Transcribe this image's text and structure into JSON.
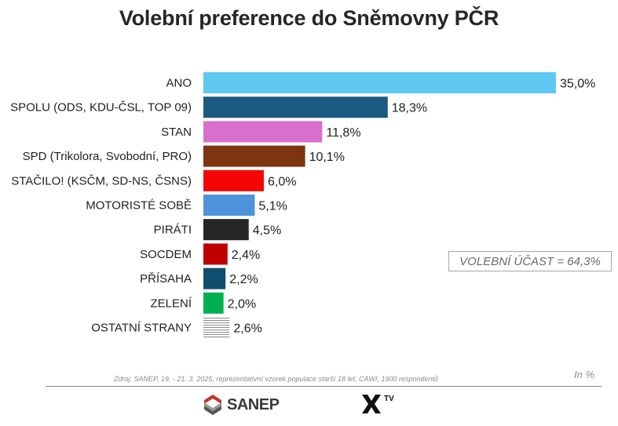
{
  "chart_data": {
    "type": "bar",
    "orientation": "horizontal",
    "title": "Volební preference do Sněmovny PČR",
    "categories": [
      "ANO",
      "SPOLU (ODS, KDU-ČSL, TOP 09)",
      "STAN",
      "SPD (Trikolora, Svobodní, PRO)",
      "STAČILO! (KSČM, SD-NS, ČSNS)",
      "MOTORISTÉ SOBĚ",
      "PIRÁTI",
      "SOCDEM",
      "PŘÍSAHA",
      "ZELENÍ",
      "OSTATNÍ STRANY"
    ],
    "values": [
      35.0,
      18.3,
      11.8,
      10.1,
      6.0,
      5.1,
      4.5,
      2.4,
      2.2,
      2.0,
      2.6
    ],
    "value_labels": [
      "35,0%",
      "18,3%",
      "11,8%",
      "10,1%",
      "6,0%",
      "5,1%",
      "4,5%",
      "2,4%",
      "2,2%",
      "2,0%",
      "2,6%"
    ],
    "colors": [
      "#5fc8f1",
      "#1b5a80",
      "#d86fcc",
      "#7d3410",
      "#f40606",
      "#4d93d9",
      "#262626",
      "#c00000",
      "#0f4e6c",
      "#00b050",
      "striped-gray"
    ],
    "xlim": [
      0,
      35
    ],
    "grid": false,
    "legend": "none",
    "unit_note": "In %"
  },
  "turnout": "VOLEBNÍ ÚČAST = 64,3%",
  "source": "Zdroj: SANEP, 19. - 21. 3. 2025, reprezentativní vzorek populace starší 18 let, CAWI, 1900 respondentů",
  "logos": {
    "sanep": "SANEP",
    "xtv_tv": "TV"
  }
}
